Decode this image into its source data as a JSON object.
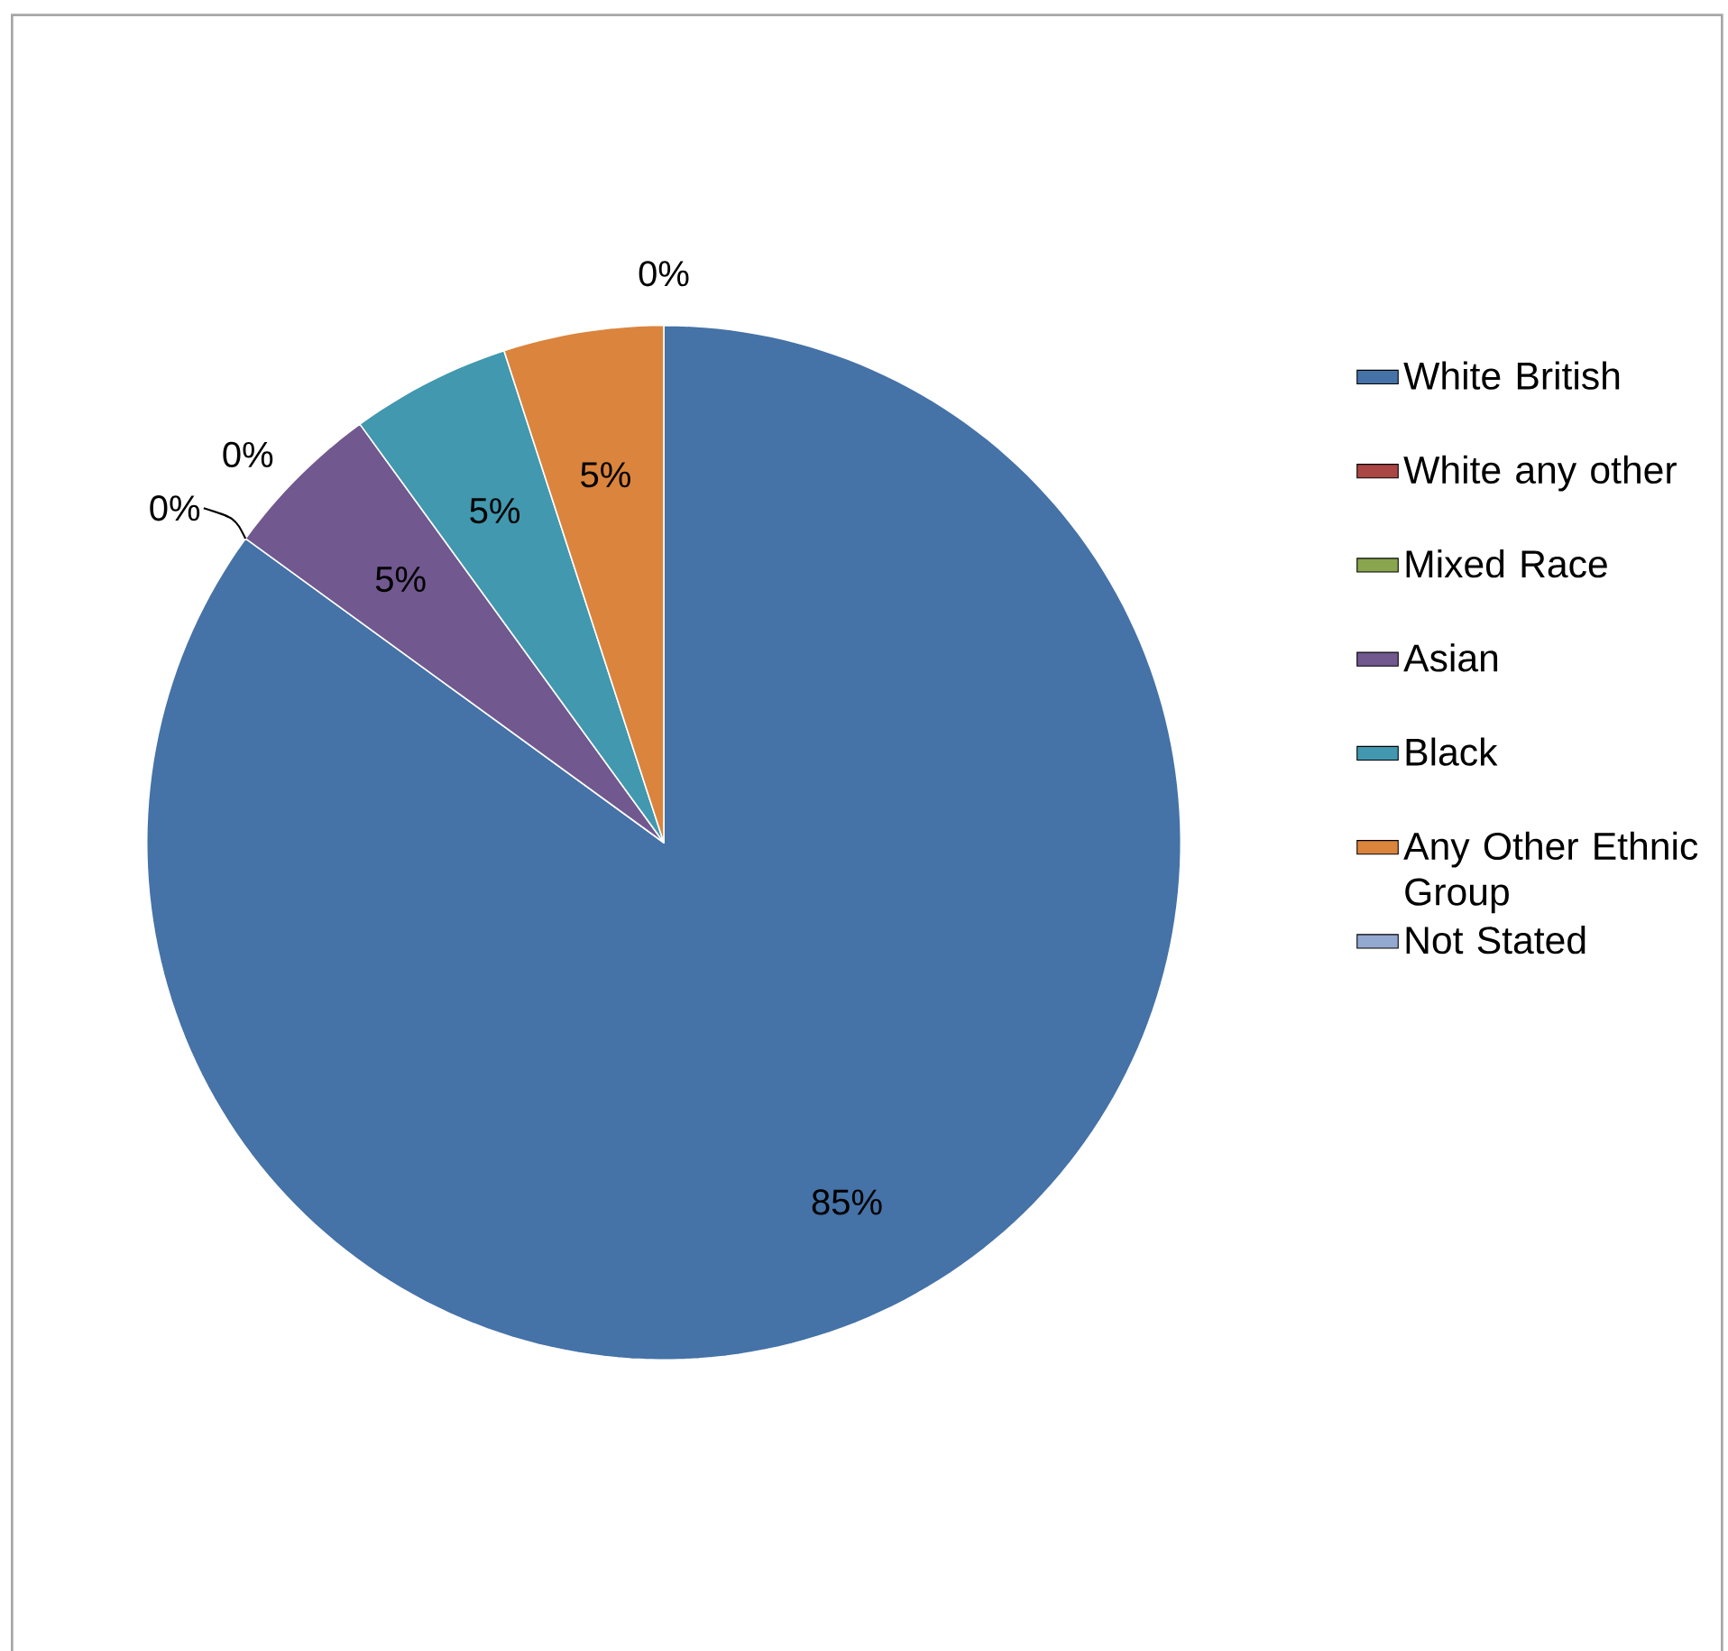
{
  "chart_data": {
    "type": "pie",
    "categories": [
      "White British",
      "White any other",
      "Mixed Race",
      "Asian",
      "Black",
      "Any Other Ethnic Group",
      "Not Stated"
    ],
    "values": [
      85,
      0,
      0,
      5,
      5,
      5,
      0
    ],
    "value_labels": [
      "85%",
      "0%",
      "0%",
      "5%",
      "5%",
      "5%",
      "0%"
    ],
    "colors": [
      "#4572a7",
      "#aa4643",
      "#89a54e",
      "#71588f",
      "#4198af",
      "#db843d",
      "#93a9cf"
    ],
    "legend": "right"
  }
}
